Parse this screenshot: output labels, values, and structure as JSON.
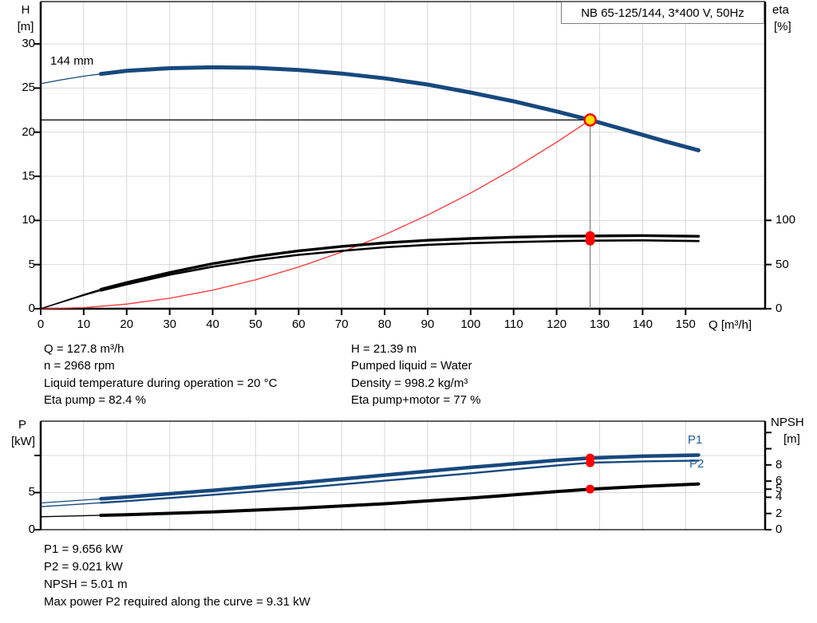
{
  "title_box": {
    "label": "NB 65-125/144, 3*400 V, 50Hz"
  },
  "colors": {
    "curve_blue": "#17497E",
    "curve_red": "#FF3333",
    "dot_red": "#FF0000",
    "dot_yellow": "#FFE100",
    "grid": "#D9D9D9",
    "frame": "#000000",
    "duty_line_gray": "#808080",
    "label_blue": "#1F5DA0"
  },
  "top_chart_labels": {
    "y_left_top": "H",
    "y_left_bottom": "[m]",
    "y_right_top": "eta",
    "y_right_bottom": "[%]",
    "x_axis_title": "Q [m³/h]",
    "impeller_trim_label": "144 mm"
  },
  "bottom_chart_labels": {
    "y_left_top": "P",
    "y_left_bottom": "[kW]",
    "y_right_top": "NPSH",
    "y_right_bottom": "[m]",
    "p1_label": "P1",
    "p2_label": "P2"
  },
  "info_top": {
    "left": [
      "Q = 127.8 m³/h",
      "n = 2968 rpm",
      "Liquid temperature during operation = 20 °C",
      "Eta pump = 82.4 %"
    ],
    "right": [
      "H = 21.39 m",
      "Pumped liquid = Water",
      "Density = 998.2 kg/m³",
      "Eta pump+motor = 77 %"
    ]
  },
  "info_bottom": [
    "P1 = 9.656 kW",
    "P2 = 9.021 kW",
    "NPSH = 5.01 m",
    "Max power P2 required along the curve = 9.31 kW"
  ],
  "chart_data": [
    {
      "type": "line",
      "title": "NB 65-125/144, 3*400 V, 50Hz",
      "xlabel": "Q [m³/h]",
      "ylabel_left": "H [m]",
      "ylabel_right": "eta [%]",
      "xlim": [
        0,
        168.5
      ],
      "ylim_left": [
        0,
        34.8
      ],
      "ylim_right": [
        0,
        347.7
      ],
      "x_tick_values": [
        0,
        10,
        20,
        30,
        40,
        50,
        60,
        70,
        80,
        90,
        100,
        110,
        120,
        130,
        140,
        150
      ],
      "left_tick_values": [
        0,
        5,
        10,
        15,
        20,
        25,
        30
      ],
      "left_tick_unlabeled": [],
      "right_tick_values": [
        0,
        50,
        100
      ],
      "right_tick_unlabeled": [],
      "grid_x": [
        10,
        20,
        30,
        40,
        50,
        60,
        70,
        80,
        90,
        100,
        110,
        120,
        130,
        140,
        150
      ],
      "grid_left": [
        5,
        10,
        15,
        20,
        25,
        30
      ],
      "series": [
        {
          "name": "system-curve",
          "axis": "left",
          "color": "#FF3333",
          "width": 1.3,
          "thin_until": null,
          "x": [
            0,
            10,
            20,
            30,
            40,
            50,
            60,
            70,
            80,
            90,
            100,
            110,
            120,
            127.8
          ],
          "y": [
            0,
            0.13,
            0.52,
            1.18,
            2.1,
            3.27,
            4.72,
            6.42,
            8.38,
            10.61,
            13.1,
            15.85,
            18.86,
            21.39
          ]
        },
        {
          "name": "eta-pump-motor",
          "axis": "right",
          "color": "#000000",
          "width": 2.6,
          "thin_until": 14,
          "x": [
            0,
            5,
            10,
            14,
            20,
            30,
            40,
            50,
            60,
            70,
            80,
            90,
            100,
            110,
            120,
            127.8,
            140,
            153
          ],
          "y": [
            0,
            7.5,
            15,
            20.5,
            27.5,
            38.5,
            47.5,
            55,
            61,
            65.5,
            69.5,
            72.3,
            74.2,
            75.5,
            76.5,
            77,
            77.4,
            76.6
          ]
        },
        {
          "name": "eta-pump",
          "axis": "right",
          "color": "#000000",
          "width": 3.4,
          "thin_until": 14,
          "x": [
            0,
            5,
            10,
            14,
            20,
            30,
            40,
            50,
            60,
            70,
            80,
            90,
            100,
            110,
            120,
            127.8,
            140,
            153
          ],
          "y": [
            0,
            8,
            16,
            22,
            29.5,
            41,
            51,
            59,
            65.5,
            70.5,
            74.5,
            77.5,
            79.5,
            81,
            82,
            82.4,
            82.8,
            82
          ]
        },
        {
          "name": "pump-curve-144mm",
          "axis": "left",
          "color": "#17497E",
          "width": 5,
          "thin_until": 14,
          "x": [
            0,
            5,
            10,
            14,
            20,
            30,
            40,
            50,
            60,
            70,
            80,
            90,
            100,
            110,
            120,
            127.8,
            135,
            145,
            153
          ],
          "y": [
            25.5,
            25.95,
            26.35,
            26.6,
            26.95,
            27.25,
            27.35,
            27.3,
            27.05,
            26.65,
            26.1,
            25.4,
            24.5,
            23.5,
            22.35,
            21.39,
            20.4,
            19.0,
            17.95
          ]
        }
      ],
      "duty_point": {
        "q": 127.8,
        "h": 21.39,
        "eta_dots": [
          82.4,
          77
        ]
      }
    },
    {
      "type": "line",
      "title": "",
      "xlabel": "",
      "ylabel_left": "P [kW]",
      "ylabel_right": "NPSH [m]",
      "xlim": [
        0,
        168.5
      ],
      "ylim_left": [
        0,
        14.62
      ],
      "ylim_right": [
        0,
        13.4
      ],
      "x_tick_values": [],
      "left_tick_values": [
        0,
        5
      ],
      "left_tick_unlabeled": [
        10
      ],
      "right_tick_values": [
        0,
        2,
        4,
        5,
        6,
        8
      ],
      "right_tick_unlabeled": [
        10,
        12
      ],
      "grid_x": [
        10,
        20,
        30,
        40,
        50,
        60,
        70,
        80,
        90,
        100,
        110,
        120,
        130,
        140,
        150
      ],
      "grid_left": [
        5,
        10
      ],
      "series": [
        {
          "name": "npsh-curve",
          "axis": "right",
          "color": "#000000",
          "width": 4,
          "thin_until": 14,
          "x": [
            0,
            20,
            40,
            60,
            80,
            100,
            120,
            127.8,
            140,
            153
          ],
          "y": [
            1.6,
            1.85,
            2.2,
            2.65,
            3.2,
            3.9,
            4.7,
            5.01,
            5.35,
            5.65
          ]
        },
        {
          "name": "p2-curve",
          "axis": "left",
          "color": "#17497E",
          "width": 2.4,
          "thin_until": 14,
          "x": [
            0,
            20,
            40,
            60,
            80,
            100,
            120,
            127.8,
            140,
            153
          ],
          "y": [
            3.1,
            3.85,
            4.7,
            5.6,
            6.6,
            7.6,
            8.65,
            9.021,
            9.2,
            9.31
          ]
        },
        {
          "name": "p1-curve",
          "axis": "left",
          "color": "#17497E",
          "width": 4.5,
          "thin_until": 14,
          "x": [
            0,
            20,
            40,
            60,
            80,
            100,
            120,
            127.8,
            140,
            153
          ],
          "y": [
            3.6,
            4.4,
            5.3,
            6.3,
            7.35,
            8.4,
            9.35,
            9.656,
            9.9,
            10.05
          ]
        }
      ],
      "duty_point": {
        "q": 127.8,
        "left_dots": [
          9.656,
          9.021
        ],
        "right_dots": [
          5.01
        ]
      }
    }
  ]
}
